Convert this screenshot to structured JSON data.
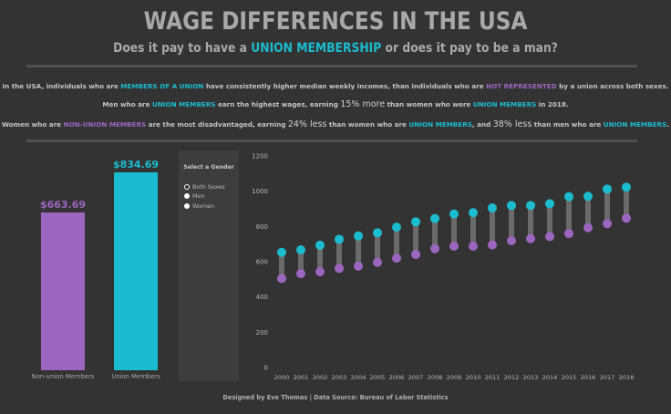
{
  "header": {
    "title": "WAGE DIFFERENCES IN THE USA",
    "subtitle_pre": "Does it pay to have a ",
    "subtitle_highlight": "UNION MEMBERSHIP",
    "subtitle_post": " or does it pay to be a man?"
  },
  "summary": {
    "line1": {
      "a": "In the USA, individuals who are ",
      "b": "MEMBERS OF A UNION",
      "c": " have consistently higher median weekly incomes, than individuals who are ",
      "d": "NOT REPRESENTED",
      "e": " by a union across both sexes."
    },
    "line2": {
      "a": "Men who are ",
      "b": "UNION MEMBERS",
      "c": " earn the highest wages, earning ",
      "d": "15% more",
      "e": " than women who were ",
      "f": "UNION MEMBERS",
      "g": " in 2018."
    },
    "line3": {
      "a": "Women who are ",
      "b": "NON-UNION MEMBERS",
      "c": " are the most disadvantaged, earning ",
      "d": "24% less",
      "e": " than women who are ",
      "f": "UNION MEMBERS",
      "g": ", and ",
      "h": "38% less",
      "i": " than men who are ",
      "j": "UNION MEMBERS",
      "k": "."
    }
  },
  "colors": {
    "union": "#1bbccf",
    "non_union": "#9c66c0",
    "background": "#333333",
    "connector": "#6a6a6a"
  },
  "filter": {
    "title": "Select a Gender",
    "options": [
      "Both Sexes",
      "Men",
      "Women"
    ],
    "selected": "Both Sexes"
  },
  "footer": "Designed by Eve Thomas | Data Source: Bureau of Labor Statistics",
  "chart_data": [
    {
      "type": "bar",
      "title": "",
      "categories": [
        "Non-union Members",
        "Union Members"
      ],
      "values": [
        663.69,
        834.69
      ],
      "value_labels": [
        "$663.69",
        "$834.69"
      ],
      "colors": [
        "#9c66c0",
        "#1bbccf"
      ],
      "xlabel": "",
      "ylabel": "",
      "ylim": [
        0,
        1000
      ],
      "grid": false
    },
    {
      "type": "scatter",
      "subtype": "dumbbell",
      "title": "",
      "x": [
        2000,
        2001,
        2002,
        2003,
        2004,
        2005,
        2006,
        2007,
        2008,
        2009,
        2010,
        2011,
        2012,
        2013,
        2014,
        2015,
        2016,
        2017,
        2018
      ],
      "series": [
        {
          "name": "Union Members",
          "color": "#1bbccf",
          "values": [
            653,
            667,
            694,
            727,
            746,
            764,
            796,
            826,
            845,
            871,
            878,
            905,
            919,
            919,
            929,
            969,
            971,
            1012,
            1023
          ]
        },
        {
          "name": "Non-union Members",
          "color": "#9c66c0",
          "values": [
            505,
            532,
            543,
            562,
            575,
            596,
            620,
            641,
            674,
            688,
            688,
            695,
            719,
            731,
            743,
            760,
            793,
            816,
            847
          ]
        }
      ],
      "yticks": [
        0,
        200,
        400,
        600,
        800,
        1000,
        1200
      ],
      "ylim": [
        0,
        1200
      ],
      "xlabel": "",
      "ylabel": "",
      "grid": false,
      "legend": "none"
    }
  ]
}
